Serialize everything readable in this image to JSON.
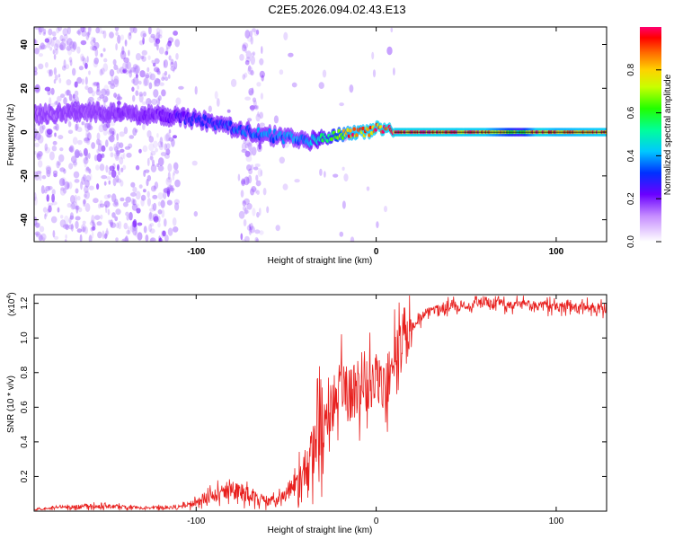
{
  "figure": {
    "title": "C2E5.2026.094.02.43.E13"
  },
  "colors": {
    "axis": "#000000",
    "snr_line": "#e8201e",
    "background": "#ffffff"
  },
  "chart_data": [
    {
      "type": "heatmap",
      "name": "spectrogram",
      "xlabel": "Height of straight line (km)",
      "ylabel": "Frequency (Hz)",
      "xlim": [
        -190,
        128
      ],
      "ylim": [
        -50,
        48
      ],
      "xticks": [
        -100,
        0,
        100
      ],
      "xtick_labels": [
        "-100",
        "0",
        "100"
      ],
      "yticks": [
        -40,
        -20,
        0,
        20,
        40
      ],
      "ytick_labels": [
        "-40",
        "-20",
        "0",
        "20",
        "40"
      ],
      "colorbar": {
        "label": "Normalized spectral amplitude",
        "range": [
          0,
          1
        ],
        "ticks": [
          0.0,
          0.2,
          0.4,
          0.6,
          0.8
        ],
        "tick_labels": [
          "0.0",
          "0.2",
          "0.4",
          "0.6",
          "0.8"
        ]
      },
      "ridge_frequency_hz": {
        "x": [
          -190,
          -170,
          -150,
          -130,
          -110,
          -95,
          -85,
          -75,
          -65,
          -55,
          -45,
          -35,
          -25,
          -15,
          -5,
          0,
          5,
          10,
          128
        ],
        "y": [
          8,
          9,
          9,
          8,
          7,
          5,
          3,
          1,
          -1,
          -2,
          -3,
          -4,
          -2,
          0,
          0,
          2,
          1,
          0,
          0
        ]
      },
      "ridge_amplitude": {
        "x": [
          -190,
          -150,
          -120,
          -100,
          -80,
          -60,
          -40,
          -25,
          -15,
          0,
          20,
          60,
          80,
          90,
          100,
          128
        ],
        "y": [
          0.15,
          0.18,
          0.2,
          0.3,
          0.35,
          0.38,
          0.4,
          0.6,
          0.9,
          0.95,
          0.97,
          0.95,
          0.6,
          0.98,
          0.9,
          0.95
        ]
      }
    },
    {
      "type": "line",
      "name": "snr",
      "xlabel": "Height of straight line (km)",
      "ylabel": "SNR (10 * v/v)",
      "y_scale_label": "(x10",
      "y_scale_exponent": "4",
      "xlim": [
        -190,
        128
      ],
      "ylim": [
        0,
        1.25
      ],
      "xticks": [
        -100,
        0,
        100
      ],
      "xtick_labels": [
        "-100",
        "0",
        "100"
      ],
      "yticks": [
        0.2,
        0.4,
        0.6,
        0.8,
        1.0,
        1.2
      ],
      "ytick_labels": [
        "0.2",
        "0.4",
        "0.6",
        "0.8",
        "1.0",
        "1.2"
      ],
      "series": [
        {
          "name": "SNR",
          "x": [
            -190,
            -160,
            -130,
            -110,
            -100,
            -90,
            -80,
            -70,
            -60,
            -50,
            -40,
            -35,
            -30,
            -25,
            -20,
            -15,
            -10,
            -5,
            0,
            5,
            10,
            15,
            20,
            25,
            30,
            40,
            50,
            60,
            80,
            100,
            128
          ],
          "y": [
            0.01,
            0.03,
            0.02,
            0.02,
            0.05,
            0.09,
            0.12,
            0.1,
            0.05,
            0.1,
            0.22,
            0.35,
            0.5,
            0.62,
            0.72,
            0.7,
            0.66,
            0.7,
            0.76,
            0.72,
            0.86,
            0.98,
            1.06,
            1.12,
            1.16,
            1.18,
            1.19,
            1.2,
            1.19,
            1.18,
            1.17
          ]
        }
      ]
    }
  ]
}
